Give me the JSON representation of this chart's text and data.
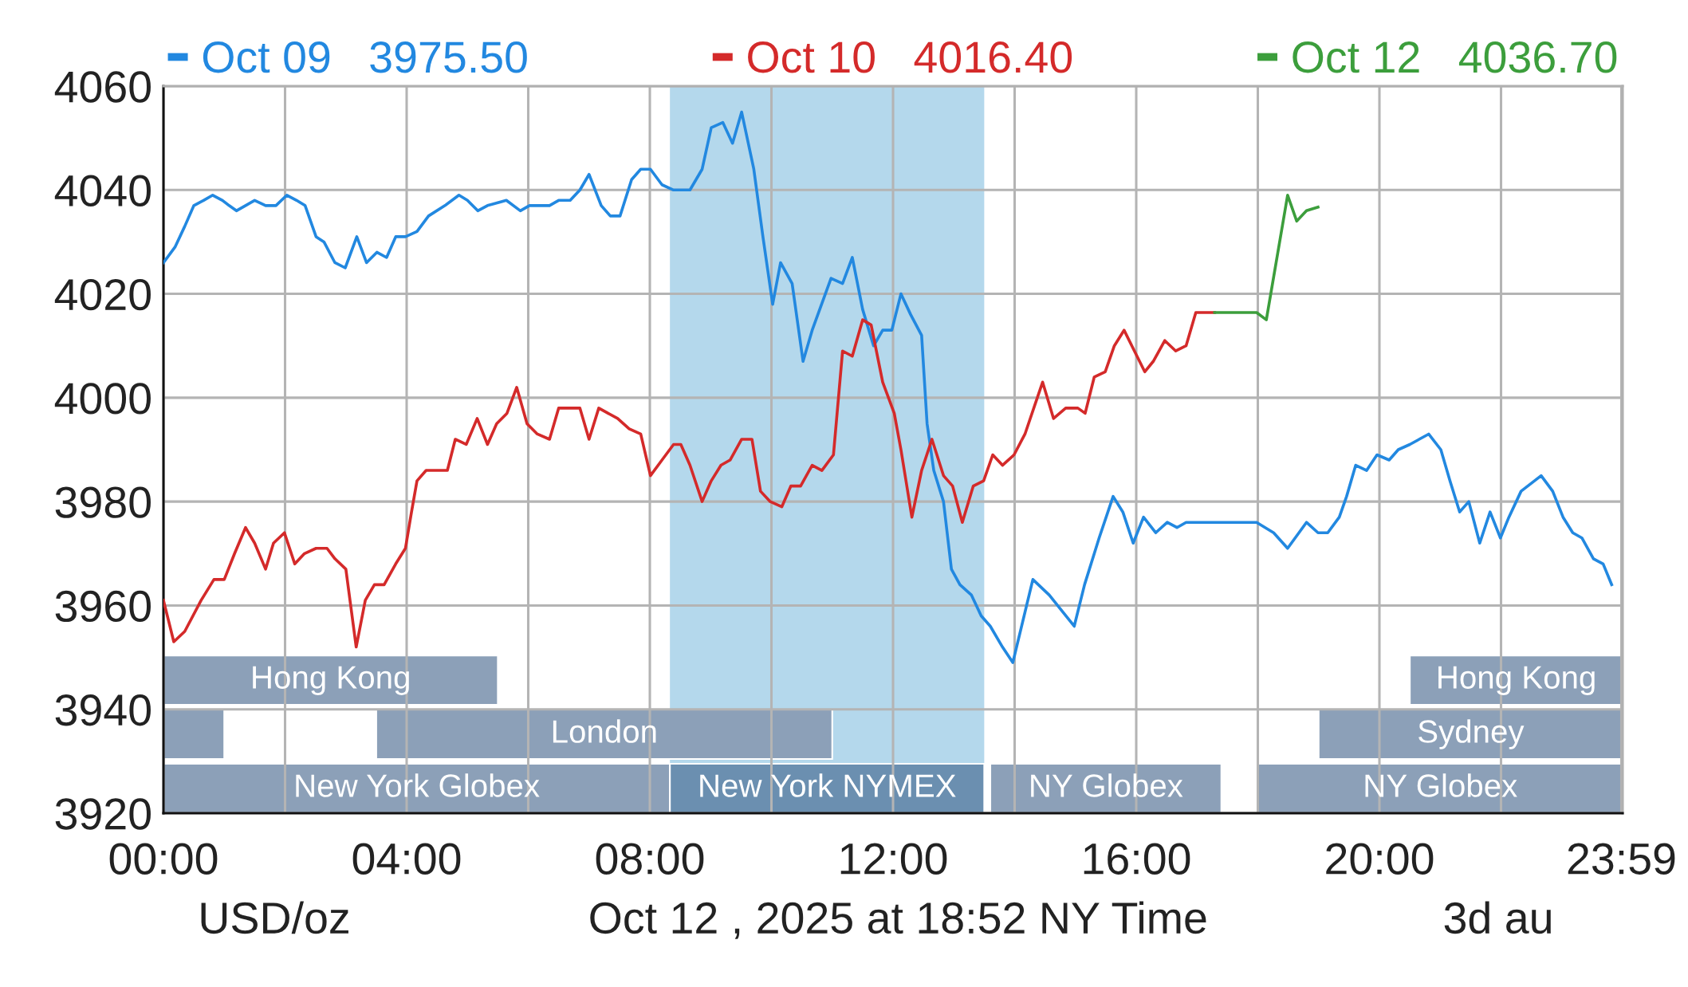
{
  "chart_data": {
    "type": "line",
    "xlabel": "Oct 12 , 2025 at 18:52 NY Time",
    "annotations": [
      "USD/oz",
      "3d au"
    ],
    "xlim": [
      0,
      24
    ],
    "ylim": [
      3920,
      4060
    ],
    "xticks": [
      {
        "value": 0,
        "label": "00:00"
      },
      {
        "value": 2,
        "label": null
      },
      {
        "value": 4,
        "label": "04:00"
      },
      {
        "value": 6,
        "label": null
      },
      {
        "value": 8,
        "label": "08:00"
      },
      {
        "value": 10,
        "label": null
      },
      {
        "value": 12,
        "label": "12:00"
      },
      {
        "value": 14,
        "label": null
      },
      {
        "value": 16,
        "label": "16:00"
      },
      {
        "value": 18,
        "label": null
      },
      {
        "value": 20,
        "label": "20:00"
      },
      {
        "value": 22,
        "label": null
      },
      {
        "value": 23.98,
        "label": "23:59"
      }
    ],
    "yticks": [
      3920,
      3940,
      3960,
      3980,
      4000,
      4020,
      4040,
      4060
    ],
    "grid": true,
    "legend": "top",
    "line_style": "solid",
    "bands": [
      {
        "axis": "x",
        "from": 8.33,
        "to": 13.5,
        "color": "#b4d8ec"
      },
      {
        "axis": "x",
        "from": 0,
        "to": 8.33,
        "label": "New York Globex",
        "color": "#8ca0b8"
      },
      {
        "axis": "x",
        "from": 8.33,
        "to": 13.5,
        "label": "New York NYMEX",
        "color": "#6b8fb0"
      },
      {
        "axis": "x",
        "from": 13.6,
        "to": 17.4,
        "label": "NY Globex",
        "color": "#8ca0b8"
      },
      {
        "axis": "x",
        "from": 18,
        "to": 24,
        "label": "NY Globex",
        "color": "#8ca0b8"
      },
      {
        "axis": "x",
        "from": 0,
        "to": 1,
        "color": "#8ca0b8"
      },
      {
        "axis": "x",
        "from": 3.5,
        "to": 11,
        "label": "London",
        "color": "#8ca0b8"
      },
      {
        "axis": "x",
        "from": 19,
        "to": 24,
        "label": "Sydney",
        "color": "#8ca0b8"
      },
      {
        "axis": "x",
        "from": 0,
        "to": 5.5,
        "label": "Hong Kong",
        "color": "#8ca0b8"
      },
      {
        "axis": "x",
        "from": 20.5,
        "to": 24,
        "label": "Hong Kong",
        "color": "#8ca0b8"
      }
    ],
    "series": [
      {
        "name": "Oct 09   3975.50",
        "color": "#2288e0",
        "x": [
          0,
          0.19,
          0.35,
          0.5,
          0.66,
          0.81,
          0.97,
          1.08,
          1.2,
          1.35,
          1.5,
          1.68,
          1.85,
          2.03,
          2.19,
          2.33,
          2.51,
          2.64,
          2.82,
          2.99,
          3.18,
          3.34,
          3.51,
          3.67,
          3.82,
          3.98,
          4.17,
          4.36,
          4.63,
          4.86,
          5.0,
          5.17,
          5.33,
          5.64,
          5.87,
          6.02,
          6.35,
          6.5,
          6.69,
          6.85,
          7.0,
          7.2,
          7.35,
          7.51,
          7.7,
          7.85,
          8.01,
          8.2,
          8.39,
          8.66,
          8.86,
          9.01,
          9.2,
          9.36,
          9.51,
          9.71,
          9.86,
          10.02,
          10.15,
          10.34,
          10.52,
          10.67,
          10.98,
          11.17,
          11.33,
          11.5,
          11.68,
          11.83,
          11.98,
          12.13,
          12.29,
          12.47,
          12.56,
          12.67,
          12.83,
          12.96,
          13.1,
          13.29,
          13.45,
          13.6,
          13.8,
          13.97,
          14.3,
          14.57,
          14.98,
          15.15,
          15.39,
          15.62,
          15.78,
          15.95,
          16.12,
          16.32,
          16.51,
          16.67,
          16.82,
          17.98,
          18.26,
          18.49,
          18.8,
          18.99,
          19.15,
          19.34,
          19.46,
          19.61,
          19.79,
          19.96,
          20.16,
          20.31,
          20.5,
          20.81,
          21.01,
          21.16,
          21.32,
          21.47,
          21.65,
          21.82,
          21.99,
          22.13,
          22.33,
          22.66,
          22.85,
          23.02,
          23.18,
          23.33,
          23.52,
          23.68,
          23.82
        ],
        "values": [
          4026,
          4029,
          4033,
          4037,
          4038,
          4039,
          4038,
          4037,
          4036,
          4037,
          4038,
          4037,
          4037,
          4039,
          4038,
          4037,
          4031,
          4030,
          4026,
          4025,
          4031,
          4026,
          4028,
          4027,
          4031,
          4031,
          4032,
          4035,
          4037,
          4039,
          4038,
          4036,
          4037,
          4038,
          4036,
          4037,
          4037,
          4038,
          4038,
          4040,
          4043,
          4037,
          4035,
          4035,
          4042,
          4044,
          4044,
          4041,
          4040,
          4040,
          4044,
          4052,
          4053,
          4049,
          4055,
          4044,
          4031,
          4018,
          4026,
          4022,
          4007,
          4013,
          4023,
          4022,
          4027,
          4017,
          4010,
          4013,
          4013,
          4020,
          4016,
          4012,
          3995,
          3986,
          3980,
          3967,
          3964,
          3962,
          3958,
          3956,
          3952,
          3949,
          3965,
          3962,
          3956,
          3964,
          3973,
          3981,
          3978,
          3972,
          3977,
          3974,
          3976,
          3975,
          3976,
          3976,
          3974,
          3971,
          3976,
          3974,
          3974,
          3977,
          3981,
          3987,
          3986,
          3989,
          3988,
          3990,
          3991,
          3993,
          3990,
          3984,
          3978,
          3980,
          3972,
          3978,
          3973,
          3977,
          3982,
          3985,
          3982,
          3977,
          3974,
          3973,
          3969,
          3968,
          3964
        ]
      },
      {
        "name": "Oct 10   4016.40",
        "color": "#d42a2a",
        "x": [
          0,
          0.17,
          0.35,
          0.62,
          0.83,
          1.0,
          1.17,
          1.35,
          1.5,
          1.68,
          1.81,
          1.99,
          2.16,
          2.32,
          2.51,
          2.69,
          2.82,
          3.0,
          3.17,
          3.32,
          3.47,
          3.63,
          3.82,
          3.98,
          4.08,
          4.17,
          4.32,
          4.52,
          4.67,
          4.8,
          4.98,
          5.16,
          5.33,
          5.48,
          5.65,
          5.81,
          5.98,
          6.15,
          6.35,
          6.5,
          6.69,
          6.85,
          7.0,
          7.16,
          7.47,
          7.66,
          7.85,
          8.01,
          8.2,
          8.39,
          8.51,
          8.66,
          8.86,
          9.01,
          9.17,
          9.32,
          9.51,
          9.68,
          9.82,
          9.98,
          10.17,
          10.32,
          10.48,
          10.67,
          10.83,
          11.02,
          11.17,
          11.33,
          11.5,
          11.64,
          11.83,
          12.02,
          12.13,
          12.31,
          12.47,
          12.64,
          12.83,
          12.98,
          13.14,
          13.32,
          13.49,
          13.64,
          13.8,
          13.99,
          14.17,
          14.46,
          14.64,
          14.84,
          15.04,
          15.16,
          15.31,
          15.49,
          15.64,
          15.8,
          15.97,
          16.14,
          16.28,
          16.47,
          16.65,
          16.82,
          16.98,
          17.29
        ],
        "values": [
          3961,
          3953,
          3955,
          3961,
          3965,
          3965,
          3970,
          3975,
          3972,
          3967,
          3972,
          3974,
          3968,
          3970,
          3971,
          3971,
          3969,
          3967,
          3952,
          3961,
          3964,
          3964,
          3968,
          3971,
          3978,
          3984,
          3986,
          3986,
          3986,
          3992,
          3991,
          3996,
          3991,
          3995,
          3997,
          4002,
          3995,
          3993,
          3992,
          3998,
          3998,
          3998,
          3992,
          3998,
          3996,
          3994,
          3993,
          3985,
          3988,
          3991,
          3991,
          3987,
          3980,
          3984,
          3987,
          3988,
          3992,
          3992,
          3982,
          3980,
          3979,
          3983,
          3983,
          3987,
          3986,
          3989,
          4009,
          4008,
          4015,
          4014,
          4003,
          3997,
          3990,
          3977,
          3986,
          3992,
          3985,
          3983,
          3976,
          3983,
          3984,
          3989,
          3987,
          3989,
          3993,
          4003,
          3996,
          3998,
          3998,
          3997,
          4004,
          4005,
          4010,
          4013,
          4009,
          4005,
          4007,
          4011,
          4009,
          4010,
          4016.4,
          4016.4
        ]
      },
      {
        "name": "Oct 12   4036.70",
        "color": "#3c9e3c",
        "x": [
          17.29,
          17.98,
          18.14,
          18.49,
          18.64,
          18.8,
          18.99
        ],
        "values": [
          4016.4,
          4016.4,
          4015,
          4039,
          4034,
          4036,
          4036.7
        ]
      }
    ]
  }
}
